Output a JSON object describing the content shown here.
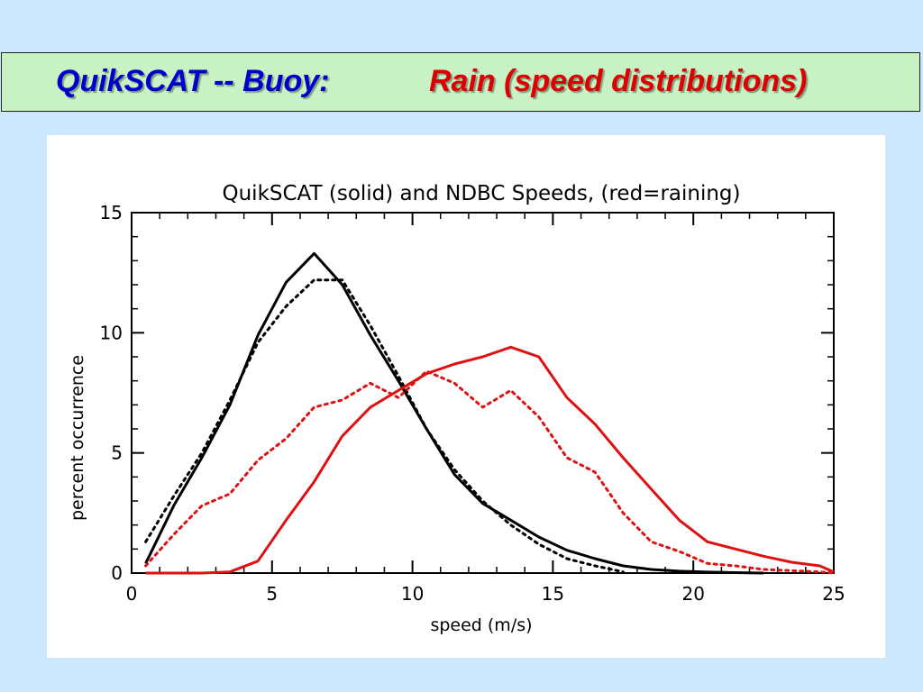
{
  "slide": {
    "title_left": "QuikSCAT -- Buoy:",
    "title_right": "Rain  (speed distributions)",
    "title_left_color": "#0000cc",
    "title_right_color": "#dd0000"
  },
  "chart_data": {
    "type": "line",
    "title": "QuikSCAT (solid) and NDBC Speeds, (red=raining)",
    "xlabel": "speed (m/s)",
    "ylabel": "percent occurrence",
    "xlim": [
      0,
      25
    ],
    "ylim": [
      0,
      15
    ],
    "xticks": [
      0,
      5,
      10,
      15,
      20,
      25
    ],
    "yticks": [
      0,
      5,
      10,
      15
    ],
    "grid": false,
    "series": [
      {
        "color": "#000000",
        "style": "solid",
        "x": [
          0.5,
          1.5,
          2.5,
          3.5,
          4.5,
          5.5,
          6.5,
          7.5,
          8.5,
          9.5,
          10.5,
          11.5,
          12.5,
          13.5,
          14.5,
          15.5,
          16.5,
          17.5,
          18.5,
          19.5,
          20.5,
          21.5,
          22.5
        ],
        "y": [
          0.4,
          2.8,
          4.8,
          7.0,
          9.9,
          12.1,
          13.3,
          12.0,
          9.9,
          8.0,
          6.0,
          4.1,
          2.9,
          2.2,
          1.5,
          0.95,
          0.6,
          0.3,
          0.15,
          0.08,
          0.04,
          0.02,
          0.0
        ]
      },
      {
        "color": "#000000",
        "style": "dotted",
        "x": [
          0.5,
          1.5,
          2.5,
          3.5,
          4.5,
          5.5,
          6.5,
          7.5,
          8.5,
          9.5,
          10.5,
          11.5,
          12.5,
          13.5,
          14.5,
          15.5,
          16.5,
          17.5
        ],
        "y": [
          1.3,
          3.2,
          5.0,
          7.2,
          9.6,
          11.1,
          12.2,
          12.2,
          10.3,
          8.2,
          6.0,
          4.3,
          3.0,
          2.0,
          1.2,
          0.6,
          0.3,
          0.05
        ]
      },
      {
        "color": "#dd1111",
        "style": "solid",
        "x": [
          0.5,
          1.5,
          2.5,
          3.5,
          4.5,
          5.5,
          6.5,
          7.5,
          8.5,
          9.5,
          10.5,
          11.5,
          12.5,
          13.5,
          14.5,
          15.5,
          16.5,
          17.5,
          18.5,
          19.5,
          20.5,
          21.5,
          22.5,
          23.5,
          24.5,
          25.0
        ],
        "y": [
          0.0,
          0.0,
          0.0,
          0.05,
          0.5,
          2.2,
          3.8,
          5.7,
          6.9,
          7.6,
          8.3,
          8.7,
          9.0,
          9.4,
          9.0,
          7.3,
          6.2,
          4.8,
          3.5,
          2.2,
          1.3,
          1.0,
          0.7,
          0.45,
          0.3,
          0.05
        ]
      },
      {
        "color": "#dd1111",
        "style": "dotted",
        "x": [
          0.5,
          1.5,
          2.5,
          3.5,
          4.5,
          5.5,
          6.5,
          7.5,
          8.5,
          9.5,
          10.5,
          11.5,
          12.5,
          13.5,
          14.5,
          15.5,
          16.5,
          17.5,
          18.5,
          19.5,
          20.5,
          21.5,
          22.5,
          23.5,
          24.5,
          25.0
        ],
        "y": [
          0.3,
          1.6,
          2.8,
          3.3,
          4.7,
          5.6,
          6.9,
          7.2,
          7.9,
          7.3,
          8.4,
          7.9,
          6.9,
          7.6,
          6.5,
          4.8,
          4.2,
          2.5,
          1.3,
          0.9,
          0.4,
          0.3,
          0.15,
          0.1,
          0.05,
          0.0
        ]
      }
    ]
  }
}
